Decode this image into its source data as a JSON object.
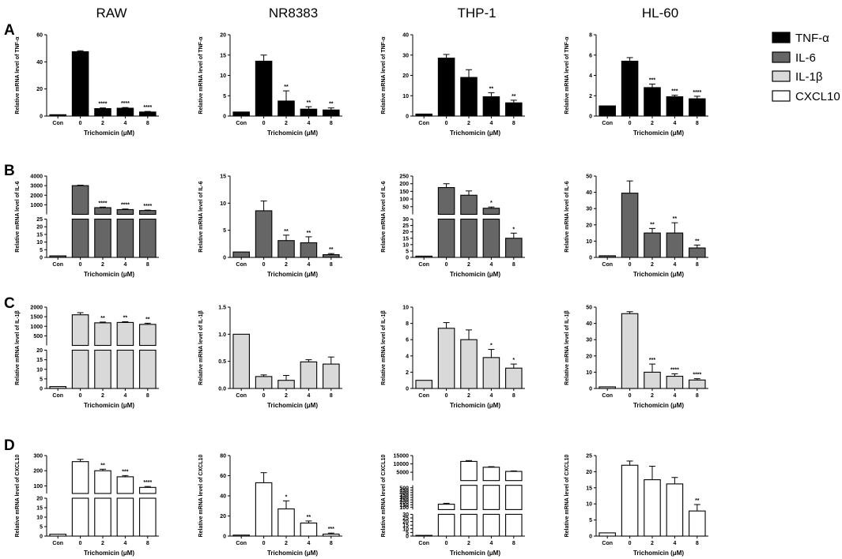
{
  "figure": {
    "column_titles": [
      "RAW",
      "NR8383",
      "THP-1",
      "HL-60"
    ],
    "row_letters": [
      "A",
      "B",
      "C",
      "D"
    ],
    "legend": [
      {
        "label": "TNF-α",
        "color": "#000000"
      },
      {
        "label": "IL-6",
        "color": "#666666"
      },
      {
        "label": "IL-1β",
        "color": "#d9d9d9"
      },
      {
        "label": "CXCL10",
        "color": "#ffffff"
      }
    ]
  },
  "chart_data": [
    {
      "type": "bar",
      "row": "A",
      "column": "RAW",
      "series": "TNF-α",
      "color": "#000000",
      "title": "RAW",
      "ylabel": "Relative mRNA level of TNF-α",
      "xlabel": "Trichomicin (μM)",
      "categories": [
        "Con",
        "0",
        "2",
        "4",
        "8"
      ],
      "values": [
        1,
        47.5,
        5.5,
        5.8,
        3
      ],
      "errors": [
        0,
        0.7,
        0.5,
        0.5,
        0.4
      ],
      "significance": [
        "",
        "",
        "****",
        "****",
        "****"
      ],
      "axis": {
        "type": "linear",
        "min": 0,
        "max": 60,
        "ticks": [
          0,
          20,
          40,
          60
        ]
      }
    },
    {
      "type": "bar",
      "row": "A",
      "column": "NR8383",
      "series": "TNF-α",
      "color": "#000000",
      "title": "NR8383",
      "ylabel": "Relative mRNA level of TNF-α",
      "xlabel": "Trichomicin (μM)",
      "categories": [
        "Con",
        "0",
        "2",
        "4",
        "8"
      ],
      "values": [
        1,
        13.5,
        3.7,
        1.7,
        1.5
      ],
      "errors": [
        0,
        1.5,
        2.5,
        0.6,
        0.5
      ],
      "significance": [
        "",
        "",
        "**",
        "**",
        "**"
      ],
      "axis": {
        "type": "linear",
        "min": 0,
        "max": 20,
        "ticks": [
          0,
          5,
          10,
          15,
          20
        ]
      }
    },
    {
      "type": "bar",
      "row": "A",
      "column": "THP-1",
      "series": "TNF-α",
      "color": "#000000",
      "title": "THP-1",
      "ylabel": "Relative mRNA level of TNF-α",
      "xlabel": "Trichomicin (μM)",
      "categories": [
        "Con",
        "0",
        "2",
        "4",
        "8"
      ],
      "values": [
        1,
        28.5,
        19,
        9.5,
        6.5
      ],
      "errors": [
        0,
        1.8,
        3.8,
        2,
        1.3
      ],
      "significance": [
        "",
        "",
        "",
        "**",
        "**"
      ],
      "axis": {
        "type": "linear",
        "min": 0,
        "max": 40,
        "ticks": [
          0,
          10,
          20,
          30,
          40
        ]
      }
    },
    {
      "type": "bar",
      "row": "A",
      "column": "HL-60",
      "series": "TNF-α",
      "color": "#000000",
      "title": "HL-60",
      "ylabel": "Relative mRNA level of TNF-α",
      "xlabel": "Trichomicin (μM)",
      "categories": [
        "Con",
        "0",
        "2",
        "4",
        "8"
      ],
      "values": [
        1,
        5.4,
        2.8,
        1.9,
        1.7
      ],
      "errors": [
        0,
        0.35,
        0.35,
        0.15,
        0.25
      ],
      "significance": [
        "",
        "",
        "***",
        "***",
        "****"
      ],
      "axis": {
        "type": "linear",
        "min": 0,
        "max": 8,
        "ticks": [
          0,
          2,
          4,
          6,
          8
        ]
      }
    },
    {
      "type": "bar",
      "row": "B",
      "column": "RAW",
      "series": "IL-6",
      "color": "#666666",
      "title": "RAW",
      "ylabel": "Relative mRNA level of IL-6",
      "xlabel": "Trichomicin (μM)",
      "categories": [
        "Con",
        "0",
        "2",
        "4",
        "8"
      ],
      "values": [
        1,
        3000,
        700,
        500,
        400
      ],
      "errors": [
        0,
        50,
        60,
        60,
        50
      ],
      "significance": [
        "",
        "",
        "****",
        "****",
        "****"
      ],
      "axis": {
        "type": "broken",
        "lower": {
          "min": 0,
          "max": 25,
          "ticks": [
            0,
            5,
            10,
            15,
            20,
            25
          ]
        },
        "upper": {
          "min": 0,
          "max": 4000,
          "ticks": [
            1000,
            2000,
            3000,
            4000
          ]
        }
      }
    },
    {
      "type": "bar",
      "row": "B",
      "column": "NR8383",
      "series": "IL-6",
      "color": "#666666",
      "title": "NR8383",
      "ylabel": "Relative mRNA level of IL-6",
      "xlabel": "Trichomicin (μM)",
      "categories": [
        "Con",
        "0",
        "2",
        "4",
        "8"
      ],
      "values": [
        1,
        8.6,
        3.1,
        2.7,
        0.5
      ],
      "errors": [
        0,
        1.8,
        1.0,
        1.1,
        0.2
      ],
      "significance": [
        "",
        "",
        "**",
        "**",
        "**"
      ],
      "axis": {
        "type": "linear",
        "min": 0,
        "max": 15,
        "ticks": [
          0,
          5,
          10,
          15
        ]
      }
    },
    {
      "type": "bar",
      "row": "B",
      "column": "THP-1",
      "series": "IL-6",
      "color": "#666666",
      "title": "THP-1",
      "ylabel": "Relative mRNA level of IL-6",
      "xlabel": "Trichomicin (μM)",
      "categories": [
        "Con",
        "0",
        "2",
        "4",
        "8"
      ],
      "values": [
        1,
        175,
        125,
        40,
        15
      ],
      "errors": [
        0,
        25,
        28,
        8,
        4
      ],
      "significance": [
        "",
        "",
        "",
        "*",
        "*"
      ],
      "axis": {
        "type": "broken",
        "lower": {
          "min": 0,
          "max": 30,
          "ticks": [
            0,
            5,
            10,
            15,
            20,
            25,
            30
          ]
        },
        "upper": {
          "min": 0,
          "max": 250,
          "ticks": [
            50,
            100,
            150,
            200,
            250
          ]
        }
      }
    },
    {
      "type": "bar",
      "row": "B",
      "column": "HL-60",
      "series": "IL-6",
      "color": "#666666",
      "title": "HL-60",
      "ylabel": "Relative mRNA level of IL-6",
      "xlabel": "Trichomicin (μM)",
      "categories": [
        "Con",
        "0",
        "2",
        "4",
        "8"
      ],
      "values": [
        1,
        39.5,
        15,
        15,
        5.8
      ],
      "errors": [
        0,
        7.5,
        2.8,
        6.3,
        1.8
      ],
      "significance": [
        "",
        "",
        "**",
        "**",
        "**"
      ],
      "axis": {
        "type": "linear",
        "min": 0,
        "max": 50,
        "ticks": [
          0,
          10,
          20,
          30,
          40,
          50
        ]
      }
    },
    {
      "type": "bar",
      "row": "C",
      "column": "RAW",
      "series": "IL-1β",
      "color": "#d9d9d9",
      "title": "RAW",
      "ylabel": "Relative mRNA level of IL-1β",
      "xlabel": "Trichomicin (μM)",
      "categories": [
        "Con",
        "0",
        "2",
        "4",
        "8"
      ],
      "values": [
        1,
        1600,
        1180,
        1200,
        1100
      ],
      "errors": [
        0,
        110,
        40,
        40,
        60
      ],
      "significance": [
        "",
        "",
        "**",
        "**",
        "**"
      ],
      "axis": {
        "type": "broken",
        "lower": {
          "min": 0,
          "max": 20,
          "ticks": [
            0,
            5,
            10,
            15,
            20
          ]
        },
        "upper": {
          "min": 0,
          "max": 2000,
          "ticks": [
            500,
            1000,
            1500,
            2000
          ]
        }
      }
    },
    {
      "type": "bar",
      "row": "C",
      "column": "NR8383",
      "series": "IL-1β",
      "color": "#d9d9d9",
      "title": "NR8383",
      "ylabel": "Relative mRNA level of IL-1β",
      "xlabel": "Trichomicin (μM)",
      "categories": [
        "Con",
        "0",
        "2",
        "4",
        "8"
      ],
      "values": [
        1,
        0.22,
        0.15,
        0.49,
        0.45
      ],
      "errors": [
        0,
        0.03,
        0.09,
        0.04,
        0.13
      ],
      "significance": [
        "",
        "",
        "",
        "",
        ""
      ],
      "axis": {
        "type": "linear",
        "min": 0,
        "max": 1.5,
        "ticks": [
          0,
          0.5,
          1.0,
          1.5
        ],
        "tick_labels": [
          "0.0",
          "0.5",
          "1.0",
          "1.5"
        ]
      }
    },
    {
      "type": "bar",
      "row": "C",
      "column": "THP-1",
      "series": "IL-1β",
      "color": "#d9d9d9",
      "title": "THP-1",
      "ylabel": "Relative mRNA level of IL-1β",
      "xlabel": "Trichomicin (μM)",
      "categories": [
        "Con",
        "0",
        "2",
        "4",
        "8"
      ],
      "values": [
        1,
        7.4,
        6,
        3.8,
        2.5
      ],
      "errors": [
        0,
        0.7,
        1.2,
        1.0,
        0.5
      ],
      "significance": [
        "",
        "",
        "",
        "*",
        "*"
      ],
      "axis": {
        "type": "linear",
        "min": 0,
        "max": 10,
        "ticks": [
          0,
          2,
          4,
          6,
          8,
          10
        ]
      }
    },
    {
      "type": "bar",
      "row": "C",
      "column": "HL-60",
      "series": "IL-1β",
      "color": "#d9d9d9",
      "title": "HL-60",
      "ylabel": "Relative mRNA level of IL-1β",
      "xlabel": "Trichomicin (μM)",
      "categories": [
        "Con",
        "0",
        "2",
        "4",
        "8"
      ],
      "values": [
        1,
        46,
        10,
        7.5,
        5.2
      ],
      "errors": [
        0,
        1.2,
        5,
        1.5,
        0.8
      ],
      "significance": [
        "",
        "",
        "***",
        "****",
        "****"
      ],
      "axis": {
        "type": "linear",
        "min": 0,
        "max": 50,
        "ticks": [
          0,
          10,
          20,
          30,
          40,
          50
        ]
      }
    },
    {
      "type": "bar",
      "row": "D",
      "column": "RAW",
      "series": "CXCL10",
      "color": "#ffffff",
      "title": "RAW",
      "ylabel": "Relative mRNA level of CXCL10",
      "xlabel": "Trichomicin (μM)",
      "categories": [
        "Con",
        "0",
        "2",
        "4",
        "8"
      ],
      "values": [
        1,
        260,
        200,
        160,
        90
      ],
      "errors": [
        0,
        15,
        10,
        8,
        6
      ],
      "significance": [
        "",
        "",
        "**",
        "***",
        "****"
      ],
      "axis": {
        "type": "broken",
        "lower": {
          "min": 0,
          "max": 20,
          "ticks": [
            0,
            5,
            10,
            15,
            20
          ]
        },
        "upper": {
          "min": 50,
          "max": 300,
          "ticks": [
            100,
            200,
            300
          ]
        }
      }
    },
    {
      "type": "bar",
      "row": "D",
      "column": "NR8383",
      "series": "CXCL10",
      "color": "#ffffff",
      "title": "NR8383",
      "ylabel": "Relative mRNA level of CXCL10",
      "xlabel": "Trichomicin (μM)",
      "categories": [
        "Con",
        "0",
        "2",
        "4",
        "8"
      ],
      "values": [
        1,
        53,
        27,
        13,
        2
      ],
      "errors": [
        0,
        10,
        8,
        2,
        1
      ],
      "significance": [
        "",
        "",
        "*",
        "**",
        "***"
      ],
      "axis": {
        "type": "linear",
        "min": 0,
        "max": 80,
        "ticks": [
          0,
          20,
          40,
          60,
          80
        ]
      }
    },
    {
      "type": "bar",
      "row": "D",
      "column": "THP-1",
      "series": "CXCL10",
      "color": "#ffffff",
      "title": "THP-1",
      "ylabel": "Relative mRNA level of CXCL10",
      "xlabel": "Trichomicin (μM)",
      "categories": [
        "Con",
        "0",
        "2",
        "4",
        "8"
      ],
      "values": [
        1,
        160,
        11500,
        8000,
        5500
      ],
      "errors": [
        0,
        20,
        500,
        350,
        300
      ],
      "significance": [
        "",
        "",
        "",
        "",
        ""
      ],
      "axis": {
        "type": "broken3",
        "lower": {
          "min": 0,
          "max": 30,
          "ticks": [
            0,
            5,
            10,
            15,
            20,
            25,
            30
          ]
        },
        "middle": {
          "min": 50,
          "max": 550,
          "ticks": [
            100,
            150,
            200,
            250,
            300,
            350,
            400,
            450,
            500
          ]
        },
        "upper": {
          "min": 0,
          "max": 15000,
          "ticks": [
            5000,
            10000,
            15000
          ]
        }
      }
    },
    {
      "type": "bar",
      "row": "D",
      "column": "HL-60",
      "series": "CXCL10",
      "color": "#ffffff",
      "title": "HL-60",
      "ylabel": "Relative mRNA level of CXCL10",
      "xlabel": "Trichomicin (μM)",
      "categories": [
        "Con",
        "0",
        "2",
        "4",
        "8"
      ],
      "values": [
        1,
        22,
        17.5,
        16.2,
        7.8
      ],
      "errors": [
        0,
        1.3,
        4.2,
        2,
        2
      ],
      "significance": [
        "",
        "",
        "",
        "",
        "**"
      ],
      "axis": {
        "type": "linear",
        "min": 0,
        "max": 25,
        "ticks": [
          0,
          5,
          10,
          15,
          20,
          25
        ]
      }
    }
  ]
}
